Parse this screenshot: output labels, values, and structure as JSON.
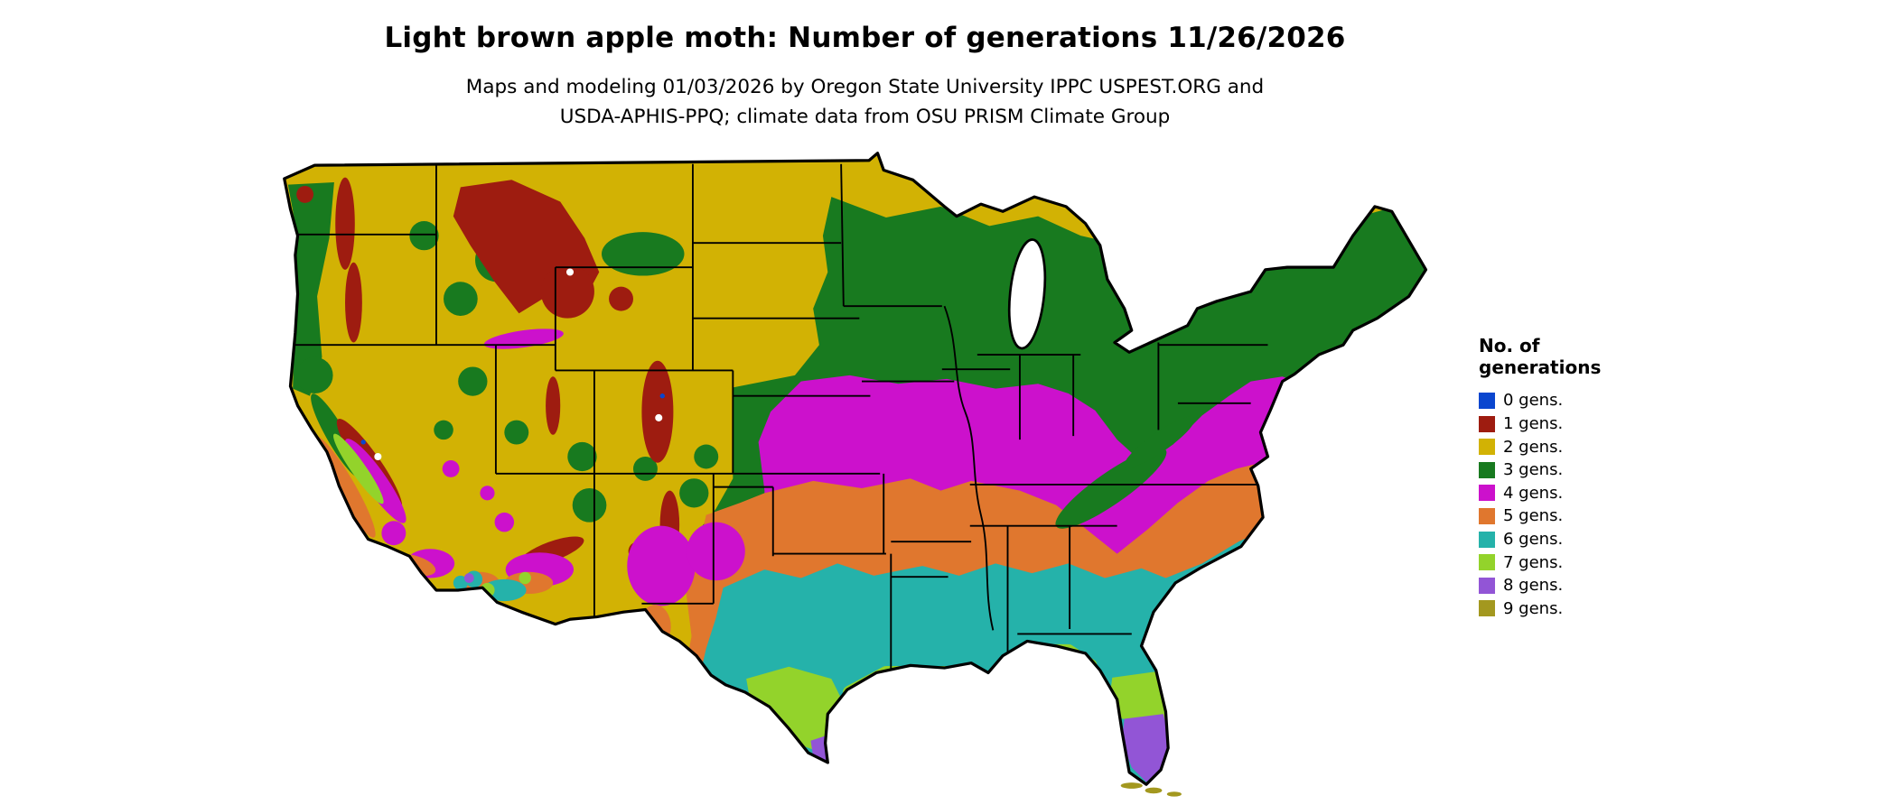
{
  "header": {
    "title": "Light brown apple moth: Number of generations 11/26/2026",
    "subtitle_line1": "Maps and modeling 01/03/2026 by Oregon State University IPPC USPEST.ORG and",
    "subtitle_line2": "USDA-APHIS-PPQ; climate data from OSU PRISM Climate Group"
  },
  "legend": {
    "title_line1": "No. of",
    "title_line2": "generations",
    "items": [
      {
        "label": "0 gens.",
        "color": "#0a46cf"
      },
      {
        "label": "1 gens.",
        "color": "#9e1c10"
      },
      {
        "label": "2 gens.",
        "color": "#d2b204"
      },
      {
        "label": "3 gens.",
        "color": "#187a1f"
      },
      {
        "label": "4 gens.",
        "color": "#cc11cc"
      },
      {
        "label": "5 gens.",
        "color": "#e0772e"
      },
      {
        "label": "6 gens.",
        "color": "#25b2aa"
      },
      {
        "label": "7 gens.",
        "color": "#93d32b"
      },
      {
        "label": "8 gens.",
        "color": "#9255d6"
      },
      {
        "label": "9 gens.",
        "color": "#a3981f"
      }
    ]
  }
}
